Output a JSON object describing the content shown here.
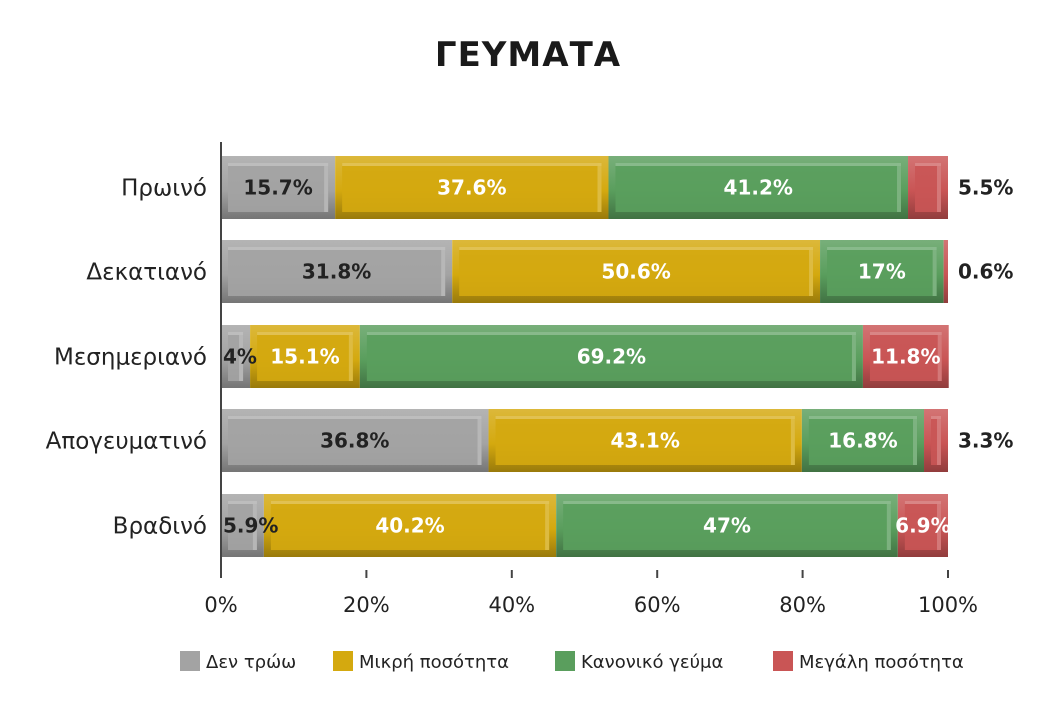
{
  "chart_data": {
    "type": "bar",
    "orientation": "horizontal",
    "stacked": "percent",
    "title": "ΓΕΥΜΑΤΑ",
    "categories": [
      "Πρωινό",
      "Δεκατιανό",
      "Μεσημεριανό",
      "Απογευματινό",
      "Βραδινό"
    ],
    "series": [
      {
        "name": "Δεν τρώω",
        "color": "#a3a3a3",
        "values": [
          15.7,
          31.8,
          4,
          36.8,
          5.9
        ],
        "labels": [
          "15.7%",
          "31.8%",
          "4%",
          "36.8%",
          "5.9%"
        ]
      },
      {
        "name": "Μικρή ποσότητα",
        "color": "#d4a90f",
        "values": [
          37.6,
          50.6,
          15.1,
          43.1,
          40.2
        ],
        "labels": [
          "37.6%",
          "50.6%",
          "15.1%",
          "43.1%",
          "40.2%"
        ]
      },
      {
        "name": "Κανονικό γεύμα",
        "color": "#5a9e5d",
        "values": [
          41.2,
          17,
          69.2,
          16.8,
          47
        ],
        "labels": [
          "41.2%",
          "17%",
          "69.2%",
          "16.8%",
          "47%"
        ]
      },
      {
        "name": "Μεγάλη ποσότητα",
        "color": "#c95555",
        "values": [
          5.5,
          0.6,
          11.8,
          3.3,
          6.9
        ],
        "labels": [
          "5.5%",
          "0.6%",
          "11.8%",
          "3.3%",
          "6.9%"
        ]
      }
    ],
    "xlim": [
      0,
      100
    ],
    "x_ticks": [
      "0%",
      "20%",
      "40%",
      "60%",
      "80%",
      "100%"
    ],
    "grid": false,
    "legend_position": "bottom"
  }
}
